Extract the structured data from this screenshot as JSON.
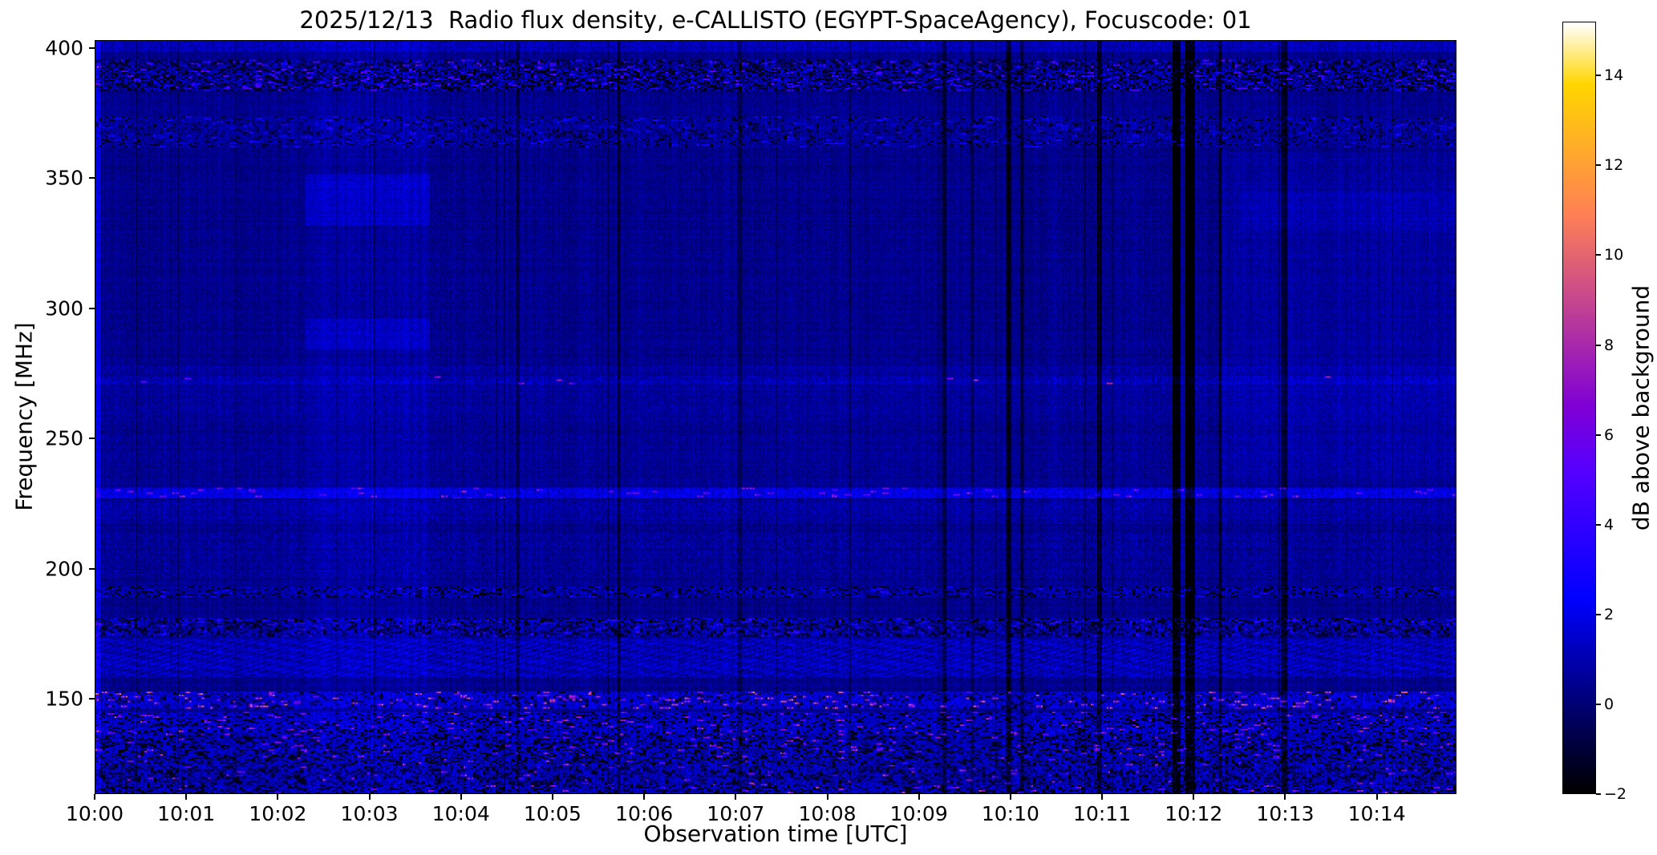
{
  "chart_data": {
    "type": "heatmap",
    "title": "2025/12/13  Radio flux density, e-CALLISTO (EGYPT-SpaceAgency), Focuscode: 01",
    "xlabel": "Observation time [UTC]",
    "ylabel": "Frequency [MHz]",
    "x_tick_labels": [
      "10:00",
      "10:01",
      "10:02",
      "10:03",
      "10:04",
      "10:05",
      "10:06",
      "10:07",
      "10:08",
      "10:09",
      "10:10",
      "10:11",
      "10:12",
      "10:13",
      "10:14"
    ],
    "x_tick_minutes": [
      0,
      1,
      2,
      3,
      4,
      5,
      6,
      7,
      8,
      9,
      10,
      11,
      12,
      13,
      14
    ],
    "x_range_minutes": [
      0,
      14.87
    ],
    "y_tick_values": [
      400,
      350,
      300,
      250,
      200,
      150
    ],
    "y_range_mhz": [
      403,
      113.5
    ],
    "grid": false,
    "colorbar": {
      "label": "dB above background",
      "tick_values": [
        14,
        12,
        10,
        8,
        6,
        4,
        2,
        0,
        -2
      ],
      "tick_labels": [
        "14",
        "12",
        "10",
        "8",
        "6",
        "4",
        "2",
        "0",
        "−2"
      ],
      "vmin": -2,
      "vmax": 15.2,
      "colormap": "gnuplot2"
    },
    "background_level_db": 0.35,
    "features": {
      "horizontal_bands": [
        {
          "f0": 399,
          "f1": 403,
          "boost": 0.7,
          "noise": 0.8
        },
        {
          "f0": 384,
          "f1": 396,
          "boost": 0.3,
          "noise": 2.6,
          "speckle_prob": 0.1,
          "speckle_gain": 3.5,
          "dark_prob": 0.3
        },
        {
          "f0": 362,
          "f1": 374,
          "boost": 0.25,
          "noise": 1.4,
          "speckle_prob": 0.06,
          "speckle_gain": 2.0,
          "dark_prob": 0.12
        },
        {
          "f0": 255,
          "f1": 278,
          "boost": 0.25,
          "noise": 0.4
        },
        {
          "f0": 271,
          "f1": 274,
          "boost": 0.4,
          "noise": 0.8,
          "speckle_prob": 0.015,
          "speckle_gain": 6.0
        },
        {
          "f0": 232,
          "f1": 252,
          "boost": 0.15,
          "noise": 0.3
        },
        {
          "f0": 227,
          "f1": 231,
          "boost": 1.5,
          "noise": 1.2,
          "speckle_prob": 0.05,
          "speckle_gain": 4.5
        },
        {
          "f0": 217,
          "f1": 226,
          "boost": 0.35,
          "noise": 0.7
        },
        {
          "f0": 196,
          "f1": 214,
          "boost": 0.2,
          "noise": 0.8
        },
        {
          "f0": 189,
          "f1": 193,
          "boost": 0.4,
          "noise": 1.6,
          "speckle_prob": 0.05,
          "speckle_gain": 2.0,
          "dark_prob": 0.2
        },
        {
          "f0": 174,
          "f1": 181,
          "boost": 0.6,
          "noise": 2.2,
          "speckle_prob": 0.1,
          "speckle_gain": 2.2,
          "dark_prob": 0.3
        },
        {
          "f0": 158,
          "f1": 173,
          "boost": 0.7,
          "noise": 1.0,
          "moire": true
        },
        {
          "f0": 146,
          "f1": 153,
          "boost": 1.1,
          "noise": 2.0,
          "speckle_prob": 0.09,
          "speckle_gain": 6.0,
          "dark_prob": 0.15
        },
        {
          "f0": 136,
          "f1": 145,
          "boost": 0.9,
          "noise": 1.8,
          "speckle_prob": 0.06,
          "speckle_gain": 5.0,
          "dark_prob": 0.2
        },
        {
          "f0": 113,
          "f1": 136,
          "boost": 0.7,
          "noise": 2.0,
          "speckle_prob": 0.04,
          "speckle_gain": 5.0,
          "dark_prob": 0.28
        }
      ],
      "patches": [
        {
          "t0": 0,
          "t1": 0.05,
          "f0": 113,
          "f1": 403,
          "delta": 1.5
        },
        {
          "t0": 2.3,
          "t1": 3.65,
          "f0": 113,
          "f1": 403,
          "delta": 0.35
        },
        {
          "t0": 2.3,
          "t1": 3.65,
          "f0": 332,
          "f1": 352,
          "delta": 0.7
        },
        {
          "t0": 2.3,
          "t1": 3.65,
          "f0": 284,
          "f1": 296,
          "delta": 0.6
        },
        {
          "t0": 12.3,
          "t1": 14.87,
          "f0": 235,
          "f1": 360,
          "delta": 0.3
        },
        {
          "t0": 12.5,
          "t1": 14.87,
          "f0": 330,
          "f1": 345,
          "delta": 0.35
        }
      ],
      "vertical_lines": [
        {
          "t": 4.62,
          "w": 0.02,
          "delta": -1.2
        },
        {
          "t": 5.72,
          "w": 0.02,
          "delta": -1.6
        },
        {
          "t": 7.05,
          "w": 0.015,
          "delta": -1.0
        },
        {
          "t": 9.28,
          "w": 0.02,
          "delta": -1.6
        },
        {
          "t": 9.98,
          "w": 0.03,
          "delta": -2.2
        },
        {
          "t": 10.13,
          "w": 0.02,
          "delta": -1.6
        },
        {
          "t": 10.98,
          "w": 0.025,
          "delta": -1.8
        },
        {
          "t": 11.82,
          "w": 0.04,
          "delta": -2.6
        },
        {
          "t": 11.97,
          "w": 0.05,
          "delta": -2.6
        },
        {
          "t": 12.3,
          "w": 0.02,
          "delta": -1.5
        },
        {
          "t": 13.0,
          "w": 0.03,
          "delta": -1.8
        }
      ]
    }
  },
  "colors": {
    "page_background": "#ffffff",
    "axis_and_text": "#000000",
    "colormap_low": "#000000",
    "colormap_mid": "#0000ff",
    "colormap_high": "#ffffff"
  }
}
